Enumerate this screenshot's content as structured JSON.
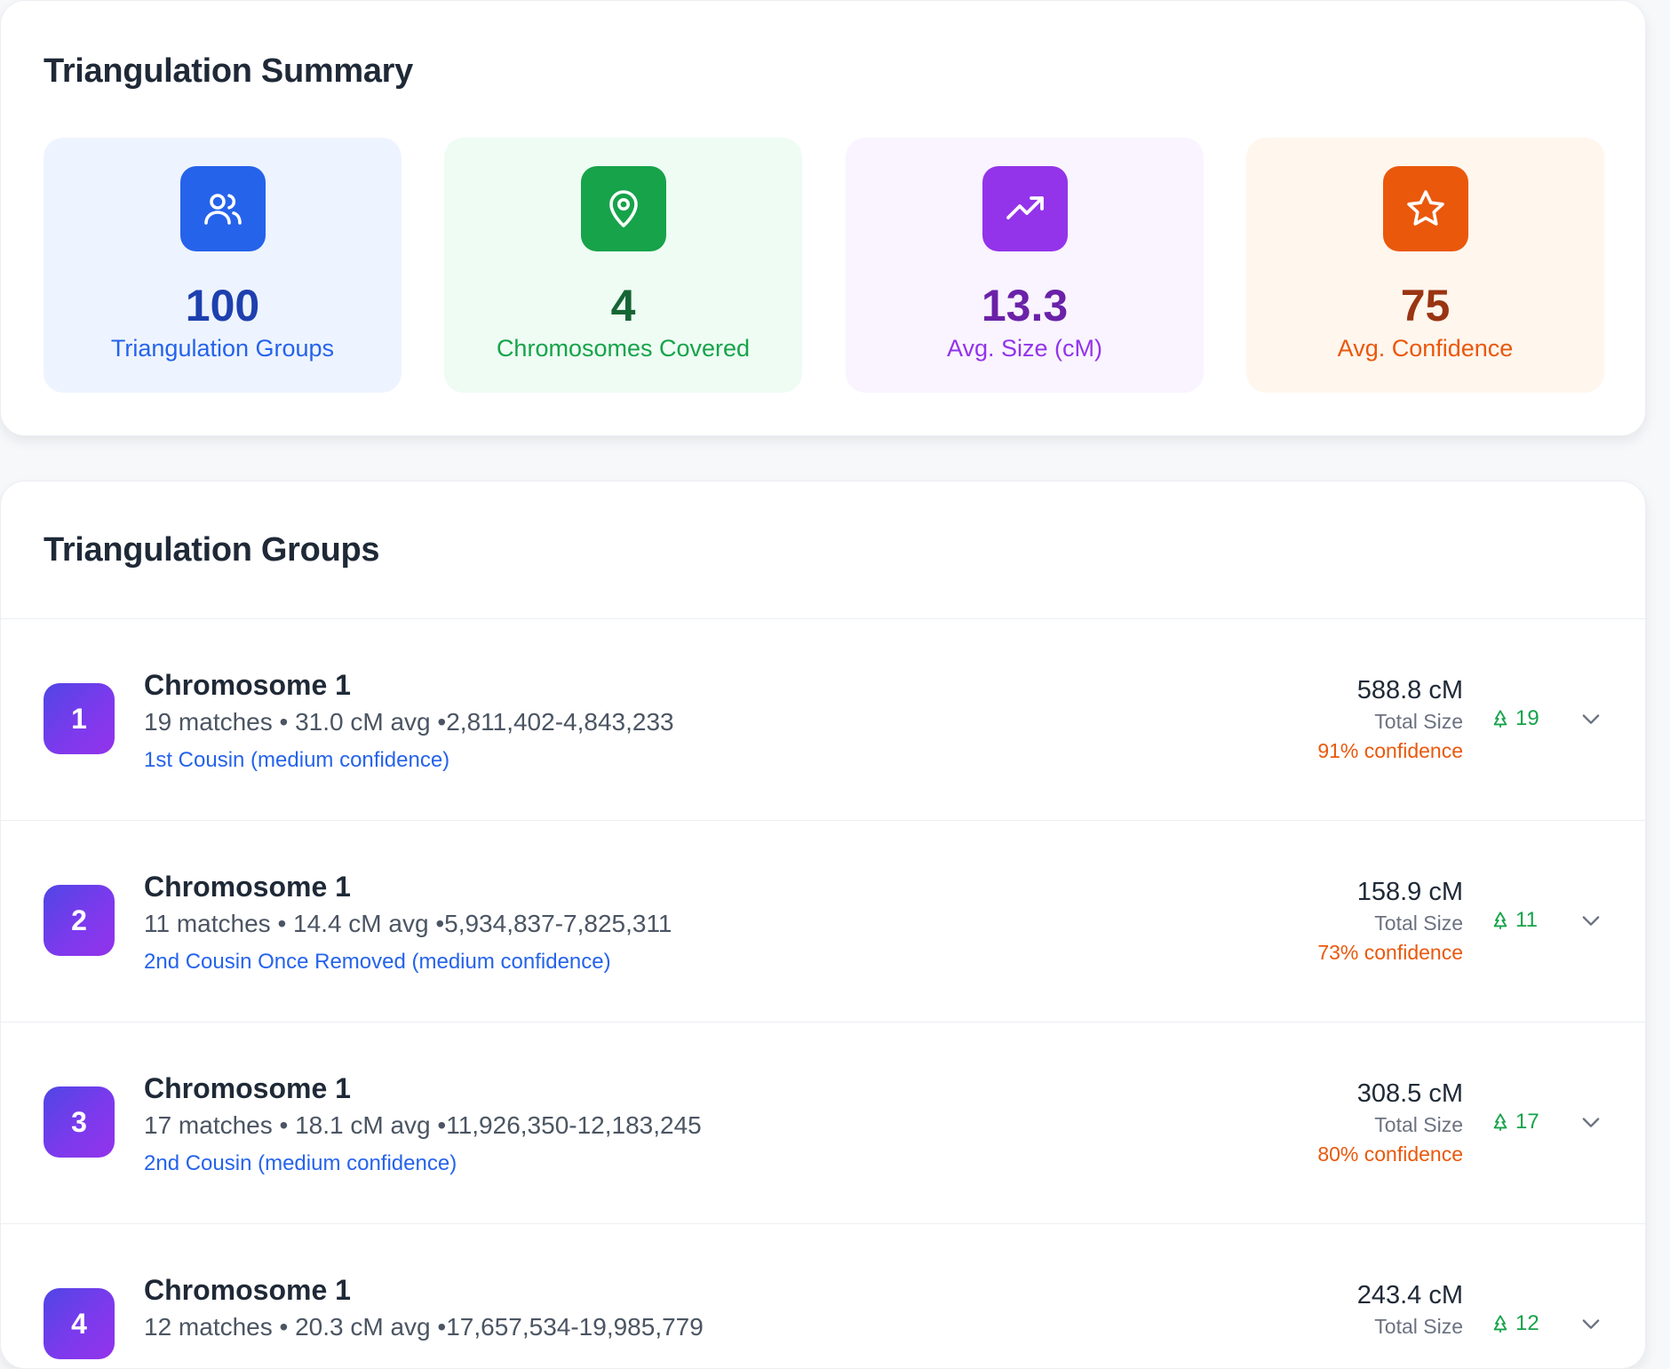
{
  "summary": {
    "title": "Triangulation Summary",
    "stats": [
      {
        "value": "100",
        "label": "Triangulation Groups",
        "icon": "users-icon",
        "bg": "#eef4ff",
        "iconBg": "#2563eb",
        "valueColor": "#1e40af",
        "labelColor": "#2563eb"
      },
      {
        "value": "4",
        "label": "Chromosomes Covered",
        "icon": "map-pin-icon",
        "bg": "#eefcf3",
        "iconBg": "#16a34a",
        "valueColor": "#166534",
        "labelColor": "#16a34a"
      },
      {
        "value": "13.3",
        "label": "Avg. Size (cM)",
        "icon": "trending-up-icon",
        "bg": "#f9f4ff",
        "iconBg": "#9333ea",
        "valueColor": "#6b21a8",
        "labelColor": "#9333ea"
      },
      {
        "value": "75",
        "label": "Avg. Confidence",
        "icon": "star-icon",
        "bg": "#fff6ed",
        "iconBg": "#ea580c",
        "valueColor": "#9a3412",
        "labelColor": "#ea580c"
      }
    ]
  },
  "groups": {
    "title": "Triangulation Groups",
    "items": [
      {
        "index": "1",
        "title": "Chromosome 1",
        "meta": "19 matches • 31.0 cM avg •2,811,402-4,843,233",
        "relation": "1st Cousin (medium confidence)",
        "size": "588.8 cM",
        "size_label": "Total Size",
        "confidence": "91% confidence",
        "count": "19"
      },
      {
        "index": "2",
        "title": "Chromosome 1",
        "meta": "11 matches • 14.4 cM avg •5,934,837-7,825,311",
        "relation": "2nd Cousin Once Removed (medium confidence)",
        "size": "158.9 cM",
        "size_label": "Total Size",
        "confidence": "73% confidence",
        "count": "11"
      },
      {
        "index": "3",
        "title": "Chromosome 1",
        "meta": "17 matches • 18.1 cM avg •11,926,350-12,183,245",
        "relation": "2nd Cousin (medium confidence)",
        "size": "308.5 cM",
        "size_label": "Total Size",
        "confidence": "80% confidence",
        "count": "17"
      },
      {
        "index": "4",
        "title": "Chromosome 1",
        "meta": "12 matches • 20.3 cM avg •17,657,534-19,985,779",
        "relation": "",
        "size": "243.4 cM",
        "size_label": "Total Size",
        "confidence": "",
        "count": "12"
      }
    ]
  }
}
